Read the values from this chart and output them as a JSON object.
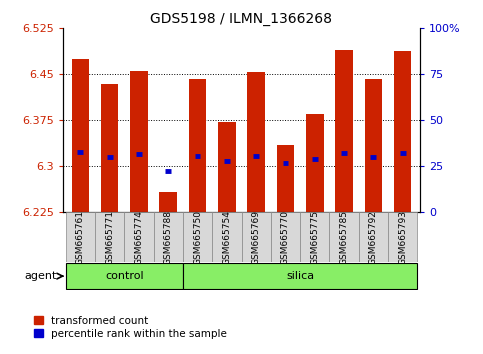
{
  "title": "GDS5198 / ILMN_1366268",
  "samples": [
    "GSM665761",
    "GSM665771",
    "GSM665774",
    "GSM665788",
    "GSM665750",
    "GSM665754",
    "GSM665769",
    "GSM665770",
    "GSM665775",
    "GSM665785",
    "GSM665792",
    "GSM665793"
  ],
  "bar_tops": [
    6.475,
    6.435,
    6.455,
    6.258,
    6.443,
    6.373,
    6.454,
    6.335,
    6.385,
    6.49,
    6.443,
    6.488
  ],
  "bar_bottom": 6.225,
  "ylim": [
    6.225,
    6.525
  ],
  "yticks": [
    6.225,
    6.3,
    6.375,
    6.45,
    6.525
  ],
  "ytick_labels": [
    "6.225",
    "6.3",
    "6.375",
    "6.45",
    "6.525"
  ],
  "right_yticks": [
    0,
    25,
    50,
    75,
    100
  ],
  "right_ytick_labels": [
    "0",
    "25",
    "50",
    "75",
    "100%"
  ],
  "percentile_values": [
    0.328,
    0.299,
    0.315,
    0.225,
    0.307,
    0.278,
    0.305,
    0.271,
    0.288,
    0.322,
    0.299,
    0.322
  ],
  "bar_color": "#cc2200",
  "percentile_color": "#0000cc",
  "xlabel_color": "#cc2200",
  "ylabel_right_color": "#0000cc",
  "bar_width": 0.6,
  "group_green": "#88ee66",
  "label_box_color": "#d8d8d8",
  "agent_label": "agent",
  "control_count": 4,
  "legend_items": [
    {
      "label": "transformed count",
      "color": "#cc2200"
    },
    {
      "label": "percentile rank within the sample",
      "color": "#0000cc"
    }
  ]
}
